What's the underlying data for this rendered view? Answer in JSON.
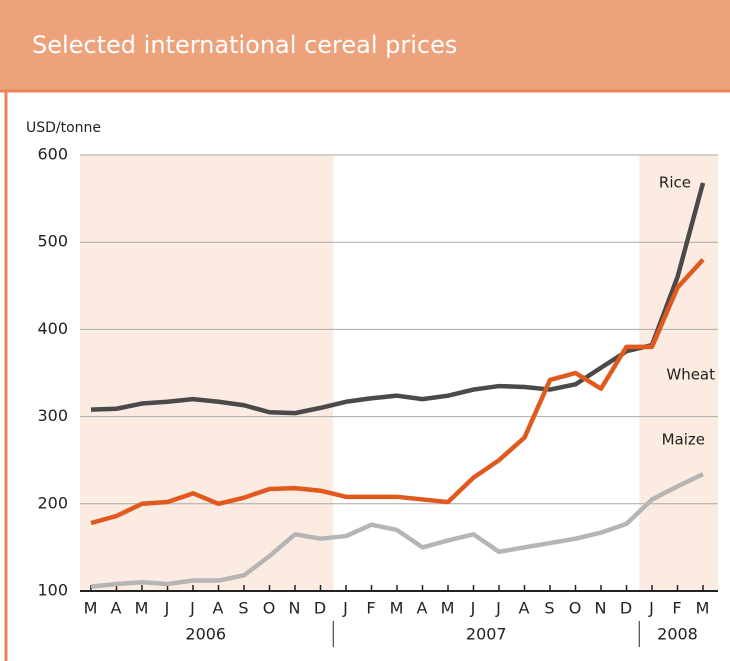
{
  "chart_data": {
    "type": "line",
    "title": "Selected international cereal prices",
    "y_label": "USD/tonne",
    "categories": [
      "M",
      "A",
      "M",
      "J",
      "J",
      "A",
      "S",
      "O",
      "N",
      "D",
      "J",
      "F",
      "M",
      "A",
      "M",
      "J",
      "J",
      "A",
      "S",
      "O",
      "N",
      "D",
      "J",
      "F",
      "M"
    ],
    "years": [
      "2006",
      "2007",
      "2008"
    ],
    "ylim": [
      100,
      600
    ],
    "yticks": [
      100,
      200,
      300,
      400,
      500,
      600
    ],
    "grid": true,
    "series": [
      {
        "name": "Rice",
        "color": "#4a4a4a",
        "values": [
          308,
          309,
          315,
          317,
          320,
          317,
          313,
          305,
          304,
          310,
          317,
          321,
          324,
          320,
          324,
          331,
          335,
          334,
          331,
          337,
          356,
          375,
          382,
          460,
          568
        ]
      },
      {
        "name": "Wheat",
        "color": "#e05a1f",
        "values": [
          178,
          186,
          200,
          202,
          212,
          200,
          207,
          217,
          218,
          215,
          208,
          208,
          208,
          205,
          202,
          230,
          250,
          276,
          342,
          350,
          332,
          380,
          380,
          448,
          480
        ]
      },
      {
        "name": "Maize",
        "color": "#b5b5b5",
        "values": [
          105,
          108,
          110,
          108,
          112,
          112,
          118,
          140,
          165,
          160,
          163,
          176,
          170,
          150,
          158,
          165,
          145,
          150,
          155,
          160,
          167,
          177,
          205,
          220,
          234
        ]
      }
    ]
  }
}
